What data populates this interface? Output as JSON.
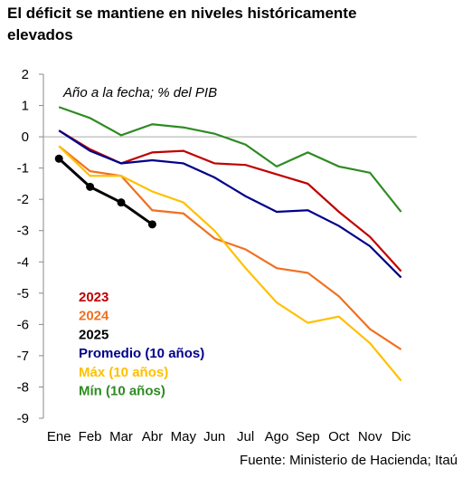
{
  "chart_data": {
    "type": "line",
    "title": [
      "El déficit se mantiene en niveles históricamente",
      "elevados"
    ],
    "annotation": "Año a la fecha; % del PIB",
    "source": "Fuente: Ministerio de Hacienda; Itaú",
    "categories": [
      "Ene",
      "Feb",
      "Mar",
      "Abr",
      "May",
      "Jun",
      "Jul",
      "Ago",
      "Sep",
      "Oct",
      "Nov",
      "Dic"
    ],
    "ylim": [
      -9,
      2
    ],
    "yticks": [
      2,
      1,
      0,
      -1,
      -2,
      -3,
      -4,
      -5,
      -6,
      -7,
      -8,
      -9
    ],
    "series": [
      {
        "name": "2023",
        "color": "#c00000",
        "values": [
          0.2,
          -0.4,
          -0.85,
          -0.5,
          -0.45,
          -0.85,
          -0.9,
          -1.2,
          -1.5,
          -2.4,
          -3.2,
          -4.3
        ]
      },
      {
        "name": "2024",
        "color": "#f07020",
        "values": [
          -0.3,
          -1.1,
          -1.25,
          -2.35,
          -2.45,
          -3.25,
          -3.6,
          -4.2,
          -4.35,
          -5.1,
          -6.15,
          -6.8
        ]
      },
      {
        "name": "2025",
        "color": "#000000",
        "markers": true,
        "values": [
          -0.7,
          -1.6,
          -2.1,
          -2.8,
          null,
          null,
          null,
          null,
          null,
          null,
          null,
          null
        ]
      },
      {
        "name": "Promedio (10 años)",
        "color": "#00008b",
        "values": [
          0.2,
          -0.45,
          -0.85,
          -0.75,
          -0.85,
          -1.3,
          -1.9,
          -2.4,
          -2.35,
          -2.85,
          -3.5,
          -4.5
        ]
      },
      {
        "name": "Máx (10 años)",
        "color": "#ffc000",
        "values": [
          -0.3,
          -1.25,
          -1.25,
          -1.75,
          -2.1,
          -3.0,
          -4.2,
          -5.3,
          -5.95,
          -5.75,
          -6.6,
          -7.8
        ]
      },
      {
        "name": "Mín (10 años)",
        "color": "#2e8b22",
        "values": [
          0.95,
          0.6,
          0.05,
          0.4,
          0.3,
          0.1,
          -0.25,
          -0.95,
          -0.5,
          -0.95,
          -1.15,
          -2.4
        ]
      }
    ]
  }
}
